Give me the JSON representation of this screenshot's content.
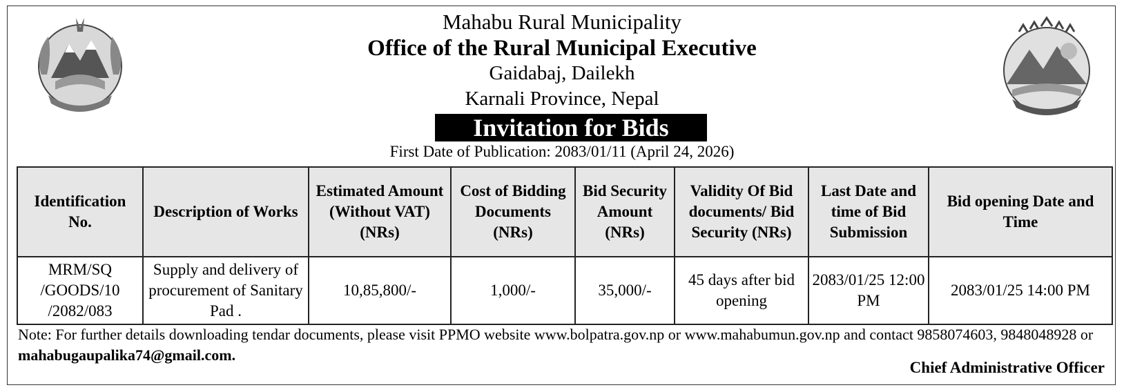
{
  "header": {
    "municipality": "Mahabu Rural Municipality",
    "office": "Office of the Rural Municipal Executive",
    "address_line1": "Gaidabaj, Dailekh",
    "address_line2": "Karnali Province, Nepal",
    "banner": "Invitation for Bids",
    "publication": "First Date of Publication: 2083/01/11 (April 24, 2026)"
  },
  "emblems": {
    "left": "nepal-government-emblem-icon",
    "right": "mahabu-rural-municipality-logo-icon"
  },
  "table": {
    "columns": [
      "Identification No.",
      "Description of Works",
      "Estimated Amount (Without VAT) (NRs)",
      "Cost of Bidding Documents (NRs)",
      "Bid Security Amount (NRs)",
      "Validity Of Bid documents/ Bid Security (NRs)",
      "Last Date and time of Bid Submission",
      "Bid opening Date and Time"
    ],
    "rows": [
      {
        "id_no": "MRM/SQ /GOODS/10 /2082/083",
        "description": "Supply and delivery of procurement of Sanitary Pad .",
        "estimated_amount": "10,85,800/-",
        "document_cost": "1,000/-",
        "bid_security": "35,000/-",
        "validity": "45 days after bid opening",
        "last_submission": "2083/01/25 12:00 PM",
        "bid_opening": "2083/01/25 14:00 PM"
      }
    ]
  },
  "note": {
    "text": "Note: For further details downloading tendar documents, please visit PPMO website www.bolpatra.gov.np or www.mahabumun.gov.np and contact 9858074603, 9848048928 or ",
    "email": "mahabugaupalika74@gmail.com."
  },
  "signatory": "Chief Administrative Officer"
}
